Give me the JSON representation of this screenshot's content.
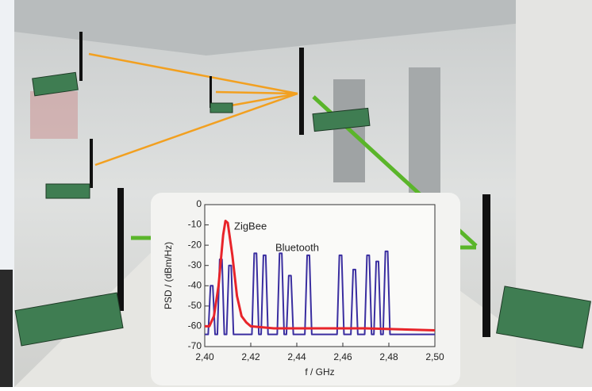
{
  "chart_data": {
    "type": "line",
    "xlabel": "f / GHz",
    "ylabel": "PSD / (dBm/Hz)",
    "xlim": [
      2.4,
      2.5
    ],
    "xticks": [
      {
        "value": 2.4,
        "label": "2,40"
      },
      {
        "value": 2.42,
        "label": "2,42"
      },
      {
        "value": 2.44,
        "label": "2,44"
      },
      {
        "value": 2.46,
        "label": "2,46"
      },
      {
        "value": 2.48,
        "label": "2,48"
      },
      {
        "value": 2.5,
        "label": "2,50"
      }
    ],
    "ylim": [
      -70,
      0
    ],
    "yticks": [
      -70,
      -60,
      -50,
      -40,
      -30,
      -20,
      -10,
      0
    ],
    "series": [
      {
        "name": "Bluetooth",
        "color": "#3a2ea0",
        "x": [
          2.4,
          2.4015,
          2.4025,
          2.4035,
          2.4045,
          2.4055,
          2.4065,
          2.4075,
          2.4085,
          2.4095,
          2.4105,
          2.4115,
          2.4125,
          2.4205,
          2.4215,
          2.4225,
          2.4235,
          2.4245,
          2.4255,
          2.4265,
          2.4275,
          2.4315,
          2.4325,
          2.4335,
          2.4345,
          2.4355,
          2.4365,
          2.4375,
          2.4385,
          2.4435,
          2.4445,
          2.4455,
          2.4465,
          2.4575,
          2.4585,
          2.4595,
          2.4605,
          2.4635,
          2.4645,
          2.4655,
          2.4665,
          2.4695,
          2.4705,
          2.4715,
          2.4725,
          2.4735,
          2.4745,
          2.4755,
          2.4765,
          2.4775,
          2.4785,
          2.4795,
          2.4805,
          2.5
        ],
        "values": [
          -64,
          -64,
          -40,
          -40,
          -64,
          -64,
          -27,
          -27,
          -64,
          -64,
          -30,
          -30,
          -64,
          -64,
          -24,
          -24,
          -64,
          -64,
          -25,
          -25,
          -64,
          -64,
          -24,
          -24,
          -64,
          -64,
          -35,
          -35,
          -64,
          -64,
          -25,
          -25,
          -64,
          -64,
          -25,
          -25,
          -64,
          -64,
          -32,
          -32,
          -64,
          -64,
          -25,
          -25,
          -64,
          -64,
          -28,
          -28,
          -64,
          -64,
          -23,
          -23,
          -64,
          -64
        ]
      },
      {
        "name": "ZigBee",
        "color": "#e8242a",
        "x": [
          2.4,
          2.402,
          2.404,
          2.406,
          2.408,
          2.409,
          2.41,
          2.412,
          2.414,
          2.416,
          2.418,
          2.42,
          2.43,
          2.45,
          2.47,
          2.5
        ],
        "values": [
          -60,
          -60,
          -55,
          -40,
          -15,
          -8,
          -9,
          -25,
          -45,
          -55,
          -58,
          -60,
          -61,
          -61,
          -61,
          -62
        ]
      }
    ]
  }
}
